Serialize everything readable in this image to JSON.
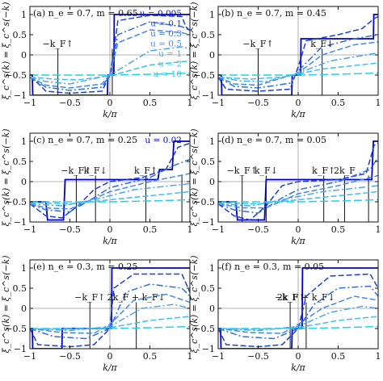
{
  "figure": {
    "x_label": "k/π",
    "y_label": "ξ_c^s(k) = ξ_c^s(−k)"
  },
  "chart_data": [
    {
      "type": "line",
      "title": "(a) n_e = 0.7, m = 0.65",
      "xlim": [
        -1,
        1
      ],
      "ylim": [
        -1,
        1.2
      ],
      "x_ticks": [
        -1,
        -0.5,
        0,
        0.5,
        1
      ],
      "y_ticks": [
        -1,
        -0.5,
        0,
        0.5,
        1
      ],
      "legend": [
        "u = 0.005",
        "u = 0.1",
        "u = 0.3",
        "u = 0.5",
        "u = 1",
        "u = 2",
        "u = 10"
      ],
      "annotations": [
        "−k_F↑"
      ],
      "markers_x": [
        -0.65,
        0.03
      ],
      "series": [
        {
          "name": "u = 0.005",
          "x": [
            -1,
            -0.97,
            -0.965,
            -0.03,
            -0.025,
            0.05,
            0.055,
            1
          ],
          "y": [
            -0.5,
            -0.5,
            -1.0,
            -1.0,
            -0.5,
            -0.5,
            1.0,
            1.0
          ]
        },
        {
          "name": "u = 0.1",
          "x": [
            -1,
            -0.9,
            -0.8,
            -0.5,
            -0.1,
            0,
            0.05,
            0.1,
            0.5,
            0.9,
            0.95,
            1
          ],
          "y": [
            -0.55,
            -0.7,
            -0.9,
            -0.95,
            -0.9,
            -0.5,
            0.1,
            0.85,
            0.98,
            0.95,
            0.7,
            0.6
          ]
        },
        {
          "name": "u = 0.3",
          "x": [
            -1,
            -0.8,
            -0.5,
            -0.1,
            0,
            0.1,
            0.5,
            0.9,
            1
          ],
          "y": [
            -0.55,
            -0.8,
            -0.88,
            -0.8,
            -0.5,
            0.5,
            0.82,
            0.7,
            0.6
          ]
        },
        {
          "name": "u = 0.5",
          "x": [
            -1,
            -0.8,
            -0.5,
            -0.1,
            0,
            0.1,
            0.5,
            0.9,
            1
          ],
          "y": [
            -0.55,
            -0.75,
            -0.82,
            -0.72,
            -0.5,
            0.3,
            0.62,
            0.55,
            0.5
          ]
        },
        {
          "name": "u = 1",
          "x": [
            -1,
            -0.8,
            -0.5,
            0,
            0.5,
            0.9,
            1
          ],
          "y": [
            -0.55,
            -0.66,
            -0.72,
            -0.5,
            0.1,
            0.2,
            0.15
          ]
        },
        {
          "name": "u = 2",
          "x": [
            -1,
            -0.7,
            -0.4,
            0,
            0.5,
            1
          ],
          "y": [
            -0.55,
            -0.6,
            -0.62,
            -0.52,
            -0.25,
            -0.15
          ]
        },
        {
          "name": "u = 10",
          "x": [
            -1,
            -0.5,
            0,
            0.5,
            1
          ],
          "y": [
            -0.5,
            -0.5,
            -0.5,
            -0.48,
            -0.45
          ]
        }
      ]
    },
    {
      "type": "line",
      "title": "(b) n_e = 0.7, m = 0.45",
      "xlim": [
        -1,
        1
      ],
      "ylim": [
        -1,
        1.2
      ],
      "x_ticks": [
        -1,
        -0.5,
        0,
        0.5,
        1
      ],
      "y_ticks": [
        -1,
        -0.5,
        0,
        0.5,
        1
      ],
      "annotations": [
        "−k_F↑",
        "k_F↓"
      ],
      "markers_x": [
        -0.5,
        0.3
      ],
      "series": [
        {
          "name": "u = 0.005",
          "x": [
            -1,
            -0.96,
            -0.955,
            -0.08,
            -0.075,
            0.03,
            0.035,
            0.94,
            0.945,
            1
          ],
          "y": [
            -0.5,
            -0.5,
            -1.0,
            -1.0,
            -0.5,
            -0.5,
            0.4,
            0.4,
            1.0,
            1.0
          ]
        },
        {
          "name": "u = 0.1",
          "x": [
            -1,
            -0.9,
            -0.5,
            -0.1,
            0,
            0.1,
            0.5,
            0.8,
            0.95,
            1
          ],
          "y": [
            -0.55,
            -0.85,
            -0.9,
            -0.85,
            -0.3,
            0.35,
            0.5,
            0.65,
            0.9,
            0.95
          ]
        },
        {
          "name": "u = 0.3",
          "x": [
            -1,
            -0.8,
            -0.5,
            -0.1,
            0,
            0.3,
            0.7,
            1
          ],
          "y": [
            -0.55,
            -0.78,
            -0.82,
            -0.7,
            -0.4,
            0.2,
            0.4,
            0.5
          ]
        },
        {
          "name": "u = 0.5",
          "x": [
            -1,
            -0.8,
            -0.5,
            0,
            0.3,
            0.7,
            1
          ],
          "y": [
            -0.55,
            -0.72,
            -0.75,
            -0.45,
            0.0,
            0.25,
            0.32
          ]
        },
        {
          "name": "u = 1",
          "x": [
            -1,
            -0.7,
            -0.4,
            0,
            0.4,
            1
          ],
          "y": [
            -0.55,
            -0.65,
            -0.66,
            -0.45,
            -0.15,
            0.05
          ]
        },
        {
          "name": "u = 2",
          "x": [
            -1,
            -0.6,
            -0.2,
            0.3,
            1
          ],
          "y": [
            -0.55,
            -0.6,
            -0.55,
            -0.35,
            -0.2
          ]
        },
        {
          "name": "u = 10",
          "x": [
            -1,
            -0.5,
            0,
            0.5,
            1
          ],
          "y": [
            -0.5,
            -0.5,
            -0.5,
            -0.48,
            -0.45
          ]
        }
      ]
    },
    {
      "type": "line",
      "title": "(c) n_e = 0.7, m = 0.25",
      "xlim": [
        -1,
        1
      ],
      "ylim": [
        -1,
        1.2
      ],
      "x_ticks": [
        -1,
        -0.5,
        0,
        0.5,
        1
      ],
      "y_ticks": [
        -1,
        -0.5,
        0,
        0.5,
        1
      ],
      "legend": [
        "u = 0.02"
      ],
      "annotations": [
        "−k_F↑",
        "k_F↓",
        "k_F↑"
      ],
      "markers_x": [
        -0.42,
        -0.18,
        0.45,
        0.9
      ],
      "series": [
        {
          "name": "u = 0.02",
          "x": [
            -1,
            -0.8,
            -0.78,
            -0.58,
            -0.56,
            -0.02,
            0.0,
            0.6,
            0.62,
            0.78,
            0.8,
            1
          ],
          "y": [
            -0.5,
            -0.5,
            -0.95,
            -0.95,
            0.05,
            0.05,
            0.05,
            0.05,
            0.3,
            0.3,
            1.0,
            1.0
          ]
        },
        {
          "name": "u = 0.1",
          "x": [
            -1,
            -0.8,
            -0.6,
            -0.4,
            -0.2,
            0,
            0.4,
            0.7,
            0.85,
            1
          ],
          "y": [
            -0.55,
            -0.85,
            -0.9,
            -0.6,
            -0.2,
            0.0,
            0.1,
            0.3,
            0.85,
            0.95
          ]
        },
        {
          "name": "u = 0.3",
          "x": [
            -1,
            -0.8,
            -0.5,
            -0.2,
            0,
            0.5,
            0.8,
            1
          ],
          "y": [
            -0.55,
            -0.7,
            -0.75,
            -0.4,
            -0.15,
            0.1,
            0.4,
            0.55
          ]
        },
        {
          "name": "u = 0.5",
          "x": [
            -1,
            -0.8,
            -0.5,
            0,
            0.5,
            1
          ],
          "y": [
            -0.55,
            -0.65,
            -0.68,
            -0.25,
            0.0,
            0.2
          ]
        },
        {
          "name": "u = 1",
          "x": [
            -1,
            -0.6,
            -0.2,
            0.3,
            1
          ],
          "y": [
            -0.55,
            -0.6,
            -0.45,
            -0.2,
            -0.05
          ]
        },
        {
          "name": "u = 2",
          "x": [
            -1,
            -0.5,
            0,
            0.5,
            1
          ],
          "y": [
            -0.52,
            -0.55,
            -0.45,
            -0.35,
            -0.25
          ]
        },
        {
          "name": "u = 10",
          "x": [
            -1,
            -0.5,
            0,
            0.5,
            1
          ],
          "y": [
            -0.5,
            -0.5,
            -0.5,
            -0.48,
            -0.45
          ]
        }
      ]
    },
    {
      "type": "line",
      "title": "(d) n_e = 0.7, m = 0.05",
      "xlim": [
        -1,
        1
      ],
      "ylim": [
        -1,
        1.2
      ],
      "x_ticks": [
        -1,
        -0.5,
        0,
        0.5,
        1
      ],
      "y_ticks": [
        -1,
        -0.5,
        0,
        0.5,
        1
      ],
      "annotations": [
        "−k_F↑",
        "k_F↓",
        "k_F↑",
        "2k_F"
      ],
      "markers_x": [
        -0.7,
        -0.4,
        0.32,
        0.58,
        0.88
      ],
      "series": [
        {
          "name": "u = 0.005",
          "x": [
            -1,
            -0.78,
            -0.76,
            -0.42,
            -0.4,
            0.92,
            0.94,
            1
          ],
          "y": [
            -0.5,
            -0.5,
            -0.95,
            -0.95,
            0.05,
            0.05,
            1.0,
            1.0
          ]
        },
        {
          "name": "u = 0.1",
          "x": [
            -1,
            -0.8,
            -0.6,
            -0.4,
            -0.2,
            0,
            0.5,
            0.85,
            0.95,
            1
          ],
          "y": [
            -0.55,
            -0.85,
            -0.95,
            -0.6,
            -0.1,
            0.0,
            0.05,
            0.2,
            0.9,
            0.95
          ]
        },
        {
          "name": "u = 0.3",
          "x": [
            -1,
            -0.8,
            -0.5,
            -0.2,
            0,
            0.5,
            0.9,
            1
          ],
          "y": [
            -0.55,
            -0.7,
            -0.78,
            -0.4,
            -0.2,
            0.0,
            0.3,
            0.6
          ]
        },
        {
          "name": "u = 0.5",
          "x": [
            -1,
            -0.7,
            -0.4,
            0,
            0.5,
            1
          ],
          "y": [
            -0.55,
            -0.65,
            -0.65,
            -0.3,
            -0.1,
            0.15
          ]
        },
        {
          "name": "u = 1",
          "x": [
            -1,
            -0.6,
            -0.2,
            0.3,
            1
          ],
          "y": [
            -0.55,
            -0.6,
            -0.45,
            -0.25,
            -0.1
          ]
        },
        {
          "name": "u = 2",
          "x": [
            -1,
            -0.5,
            0,
            0.5,
            1
          ],
          "y": [
            -0.52,
            -0.55,
            -0.45,
            -0.35,
            -0.25
          ]
        },
        {
          "name": "u = 10",
          "x": [
            -1,
            -0.5,
            0,
            0.5,
            1
          ],
          "y": [
            -0.5,
            -0.5,
            -0.5,
            -0.48,
            -0.45
          ]
        }
      ]
    },
    {
      "type": "line",
      "title": "(e) n_e = 0.3, m = 0.25",
      "xlim": [
        -1,
        1
      ],
      "ylim": [
        -1,
        1.2
      ],
      "x_ticks": [
        -1,
        -0.5,
        0,
        0.5,
        1
      ],
      "y_ticks": [
        -1,
        -0.5,
        0,
        0.5,
        1
      ],
      "annotations": [
        "−k_F↑",
        "2k_F + k_F↓"
      ],
      "markers_x": [
        -0.25,
        0.33
      ],
      "series": [
        {
          "name": "u = 0.005",
          "x": [
            -1,
            -0.97,
            -0.965,
            -0.6,
            -0.595,
            0.02,
            0.025,
            1
          ],
          "y": [
            -0.5,
            -0.5,
            -1.0,
            -1.0,
            -0.5,
            -0.5,
            1.0,
            1.0
          ]
        },
        {
          "name": "u = 0.1",
          "x": [
            -1,
            -0.9,
            -0.5,
            -0.2,
            0,
            0.05,
            0.3,
            0.9,
            1
          ],
          "y": [
            -0.5,
            -0.9,
            -0.95,
            -0.9,
            -0.5,
            0.5,
            0.85,
            0.85,
            0.4
          ]
        },
        {
          "name": "u = 0.3",
          "x": [
            -1,
            -0.7,
            -0.3,
            0,
            0.2,
            0.5,
            0.9,
            1
          ],
          "y": [
            -0.5,
            -0.7,
            -0.75,
            -0.5,
            0.4,
            0.6,
            0.5,
            0.3
          ]
        },
        {
          "name": "u = 0.5",
          "x": [
            -1,
            -0.6,
            -0.2,
            0,
            0.3,
            0.7,
            1
          ],
          "y": [
            -0.5,
            -0.6,
            -0.62,
            -0.4,
            0.2,
            0.35,
            0.15
          ]
        },
        {
          "name": "u = 1",
          "x": [
            -1,
            -0.5,
            0,
            0.4,
            0.8,
            1
          ],
          "y": [
            -0.5,
            -0.55,
            -0.45,
            0.0,
            0.1,
            0.0
          ]
        },
        {
          "name": "u = 2",
          "x": [
            -1,
            -0.5,
            0,
            0.5,
            1
          ],
          "y": [
            -0.5,
            -0.52,
            -0.48,
            -0.3,
            -0.2
          ]
        },
        {
          "name": "u = 10",
          "x": [
            -1,
            -0.5,
            0,
            0.5,
            1
          ],
          "y": [
            -0.5,
            -0.5,
            -0.5,
            -0.48,
            -0.45
          ]
        }
      ]
    },
    {
      "type": "line",
      "title": "(f) n_e = 0.3, m = 0.05",
      "xlim": [
        -1,
        1
      ],
      "ylim": [
        -1,
        1.2
      ],
      "x_ticks": [
        -1,
        -0.5,
        0,
        0.5,
        1
      ],
      "y_ticks": [
        -1,
        -0.5,
        0,
        0.5,
        1
      ],
      "annotations": [
        "−k_F↑",
        "2k_F + k_F↓"
      ],
      "markers_x": [
        -0.1,
        0.1
      ],
      "series": [
        {
          "name": "u = 0.005",
          "x": [
            -1,
            -0.97,
            -0.965,
            -0.08,
            -0.075,
            0.05,
            0.055,
            1
          ],
          "y": [
            -0.5,
            -0.5,
            -1.0,
            -1.0,
            -0.5,
            -0.5,
            1.0,
            1.0
          ]
        },
        {
          "name": "u = 0.1",
          "x": [
            -1,
            -0.9,
            -0.5,
            -0.2,
            0,
            0.1,
            0.4,
            0.9,
            1
          ],
          "y": [
            -0.5,
            -0.9,
            -0.95,
            -0.9,
            -0.5,
            0.3,
            0.8,
            0.85,
            0.5
          ]
        },
        {
          "name": "u = 0.3",
          "x": [
            -1,
            -0.7,
            -0.3,
            0,
            0.2,
            0.5,
            0.9,
            1
          ],
          "y": [
            -0.5,
            -0.7,
            -0.75,
            -0.5,
            0.1,
            0.5,
            0.55,
            0.3
          ]
        },
        {
          "name": "u = 0.5",
          "x": [
            -1,
            -0.6,
            -0.2,
            0,
            0.3,
            0.7,
            1
          ],
          "y": [
            -0.5,
            -0.6,
            -0.62,
            -0.4,
            0.0,
            0.3,
            0.2
          ]
        },
        {
          "name": "u = 1",
          "x": [
            -1,
            -0.5,
            0,
            0.4,
            0.8,
            1
          ],
          "y": [
            -0.5,
            -0.55,
            -0.45,
            -0.1,
            0.05,
            0.0
          ]
        },
        {
          "name": "u = 2",
          "x": [
            -1,
            -0.5,
            0,
            0.5,
            1
          ],
          "y": [
            -0.5,
            -0.52,
            -0.48,
            -0.3,
            -0.2
          ]
        },
        {
          "name": "u = 10",
          "x": [
            -1,
            -0.5,
            0,
            0.5,
            1
          ],
          "y": [
            -0.5,
            -0.5,
            -0.5,
            -0.48,
            -0.45
          ]
        }
      ]
    }
  ],
  "series_styles": [
    {
      "color": "#0000cc",
      "dash": ""
    },
    {
      "color": "#1a3fd6",
      "dash": "7,3"
    },
    {
      "color": "#2f6fe0",
      "dash": "8,3,2,3"
    },
    {
      "color": "#3f8ae8",
      "dash": "7,3"
    },
    {
      "color": "#4aa8ef",
      "dash": "8,3,2,3"
    },
    {
      "color": "#3cc0f2",
      "dash": "7,3"
    },
    {
      "color": "#22d0ee",
      "dash": "10,4"
    }
  ],
  "marker_color": "#111111",
  "marker_orange": "#e8a040"
}
